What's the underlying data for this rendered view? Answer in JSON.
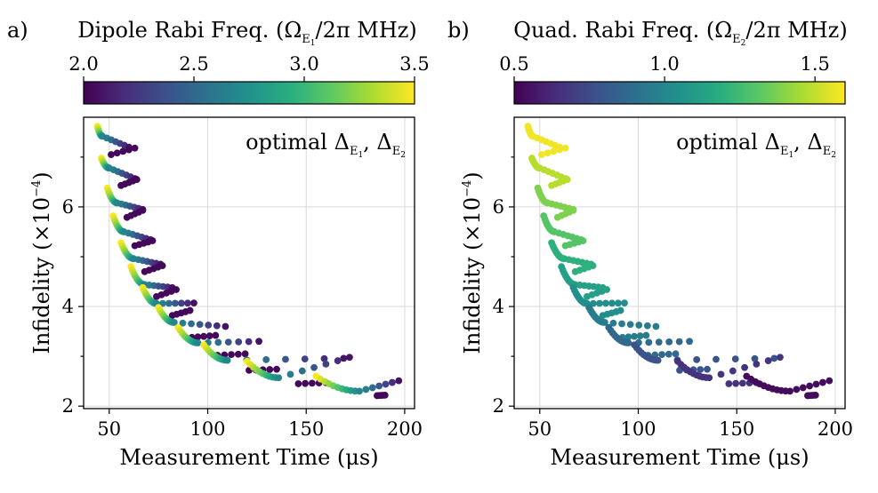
{
  "chart_data": [
    {
      "panel_label": "a)",
      "type": "scatter",
      "xlabel": "Measurement Time (μs)",
      "ylabel_text": "Infidelity",
      "ylabel_unit": "(×10",
      "ylabel_exp": "−4",
      "ylabel_close": ")",
      "x_ticks": [
        "50",
        "100",
        "150",
        "200"
      ],
      "y_ticks": [
        "2",
        "4",
        "6"
      ],
      "xlim": [
        37,
        205
      ],
      "ylim": [
        1.95,
        7.8
      ],
      "annotation": {
        "main": "optimal Δ",
        "sub1": "E",
        "sub1b": "1",
        "sep": ", Δ",
        "sub2": "E",
        "sub2b": "2"
      },
      "colorbar": {
        "title_main": "Dipole Rabi Freq. (Ω",
        "title_sub": "E",
        "title_subsub": "1",
        "title_end": "/2π MHz)",
        "ticks": [
          "2.0",
          "2.5",
          "3.0",
          "3.5"
        ],
        "range": [
          2.0,
          3.5
        ],
        "colormap": "viridis"
      },
      "series": [
        {
          "min": [
            46.5,
            7.42
          ],
          "back": [
            [
              44,
              7.62
            ],
            [
              60,
              7.2
            ]
          ],
          "fwd": [
            [
              51,
              7.05
            ],
            [
              63,
              7.18
            ]
          ]
        },
        {
          "min": [
            50,
            6.78
          ],
          "back": [
            [
              46,
              6.98
            ],
            [
              63,
              6.57
            ]
          ],
          "fwd": [
            [
              56,
              6.43
            ],
            [
              64,
              6.55
            ]
          ]
        },
        {
          "min": [
            54,
            6.08
          ],
          "back": [
            [
              49,
              6.38
            ],
            [
              67,
              5.95
            ]
          ],
          "fwd": [
            [
              59,
              5.79
            ],
            [
              67,
              5.93
            ]
          ]
        },
        {
          "min": [
            57.5,
            5.5
          ],
          "back": [
            [
              52,
              5.82
            ],
            [
              71,
              5.34
            ]
          ],
          "fwd": [
            [
              63,
              5.22
            ],
            [
              72,
              5.32
            ]
          ]
        },
        {
          "min": [
            62.5,
            4.96
          ],
          "back": [
            [
              56,
              5.28
            ],
            [
              76,
              4.85
            ]
          ],
          "fwd": [
            [
              68,
              4.7
            ],
            [
              77,
              4.82
            ]
          ]
        },
        {
          "min": [
            68,
            4.44
          ],
          "back": [
            [
              61,
              4.8
            ],
            [
              82,
              4.38
            ]
          ],
          "fwd": [
            [
              74,
              4.2
            ],
            [
              84,
              4.34
            ]
          ]
        },
        {
          "min": [
            74,
            4.06
          ],
          "back": [
            [
              67,
              4.38
            ],
            [
              93,
              4.07
            ]
          ],
          "fwd": [
            [
              82,
              3.82
            ],
            [
              91,
              3.92
            ]
          ]
        },
        {
          "min": [
            83,
            3.68
          ],
          "back": [
            [
              75,
              3.98
            ],
            [
              109,
              3.6
            ]
          ],
          "fwd": [
            [
              92,
              3.38
            ],
            [
              104,
              3.42
            ]
          ]
        },
        {
          "min": [
            95,
            3.27
          ],
          "back": [
            [
              85,
              3.58
            ],
            [
              126,
              3.3
            ]
          ],
          "fwd": [
            [
              105,
              3.02
            ],
            [
              119,
              3.05
            ]
          ]
        },
        {
          "min": [
            110,
            2.92
          ],
          "back": [
            [
              98,
              3.23
            ],
            [
              169,
              2.96
            ]
          ],
          "fwd": [
            [
              121,
              2.72
            ],
            [
              135,
              2.74
            ]
          ]
        },
        {
          "min": [
            136,
            2.57
          ],
          "back": [
            [
              120,
              2.9
            ],
            [
              172,
              2.98
            ]
          ],
          "fwd": [
            [
              146,
              2.45
            ],
            [
              160,
              2.47
            ]
          ]
        },
        {
          "min": [
            177,
            2.3
          ],
          "back": [
            [
              155,
              2.6
            ],
            [
              197,
              2.51
            ]
          ],
          "fwd": [
            [
              186,
              2.21
            ],
            [
              190,
              2.22
            ]
          ]
        }
      ]
    },
    {
      "panel_label": "b)",
      "type": "scatter",
      "xlabel": "Measurement Time (μs)",
      "ylabel_text": "Infidelity",
      "ylabel_unit": "(×10",
      "ylabel_exp": "−4",
      "ylabel_close": ")",
      "x_ticks": [
        "50",
        "100",
        "150",
        "200"
      ],
      "y_ticks": [
        "2",
        "4",
        "6"
      ],
      "xlim": [
        37,
        205
      ],
      "ylim": [
        1.95,
        7.8
      ],
      "annotation": {
        "main": "optimal Δ",
        "sub1": "E",
        "sub1b": "1",
        "sep": ", Δ",
        "sub2": "E",
        "sub2b": "2"
      },
      "colorbar": {
        "title_main": "Quad. Rabi Freq. (Ω",
        "title_sub": "E",
        "title_subsub": "2",
        "title_end": "/2π MHz)",
        "ticks": [
          "0.5",
          "1.0",
          "1.5"
        ],
        "range": [
          0.5,
          1.6
        ],
        "colormap": "viridis"
      },
      "series": [
        {
          "quad": 1.58,
          "min": [
            46.5,
            7.42
          ],
          "back": [
            [
              44,
              7.62
            ],
            [
              60,
              7.2
            ]
          ],
          "fwd": [
            [
              51,
              7.05
            ],
            [
              63,
              7.18
            ]
          ]
        },
        {
          "quad": 1.48,
          "min": [
            50,
            6.78
          ],
          "back": [
            [
              46,
              6.98
            ],
            [
              63,
              6.57
            ]
          ],
          "fwd": [
            [
              56,
              6.43
            ],
            [
              64,
              6.55
            ]
          ]
        },
        {
          "quad": 1.38,
          "min": [
            54,
            6.08
          ],
          "back": [
            [
              49,
              6.38
            ],
            [
              67,
              5.95
            ]
          ],
          "fwd": [
            [
              59,
              5.79
            ],
            [
              67,
              5.93
            ]
          ]
        },
        {
          "quad": 1.3,
          "min": [
            57.5,
            5.5
          ],
          "back": [
            [
              52,
              5.82
            ],
            [
              71,
              5.34
            ]
          ],
          "fwd": [
            [
              63,
              5.22
            ],
            [
              72,
              5.32
            ]
          ]
        },
        {
          "quad": 1.2,
          "min": [
            62.5,
            4.96
          ],
          "back": [
            [
              56,
              5.28
            ],
            [
              76,
              4.85
            ]
          ],
          "fwd": [
            [
              68,
              4.7
            ],
            [
              77,
              4.82
            ]
          ]
        },
        {
          "quad": 1.12,
          "min": [
            68,
            4.44
          ],
          "back": [
            [
              61,
              4.8
            ],
            [
              82,
              4.38
            ]
          ],
          "fwd": [
            [
              74,
              4.2
            ],
            [
              84,
              4.34
            ]
          ]
        },
        {
          "quad": 1.04,
          "min": [
            74,
            4.06
          ],
          "back": [
            [
              67,
              4.38
            ],
            [
              93,
              4.07
            ]
          ],
          "fwd": [
            [
              82,
              3.82
            ],
            [
              91,
              3.92
            ]
          ]
        },
        {
          "quad": 0.96,
          "min": [
            83,
            3.68
          ],
          "back": [
            [
              75,
              3.98
            ],
            [
              109,
              3.6
            ]
          ],
          "fwd": [
            [
              92,
              3.38
            ],
            [
              104,
              3.42
            ]
          ]
        },
        {
          "quad": 0.87,
          "min": [
            95,
            3.27
          ],
          "back": [
            [
              85,
              3.58
            ],
            [
              126,
              3.3
            ]
          ],
          "fwd": [
            [
              105,
              3.02
            ],
            [
              119,
              3.05
            ]
          ]
        },
        {
          "quad": 0.78,
          "min": [
            110,
            2.92
          ],
          "back": [
            [
              98,
              3.23
            ],
            [
              169,
              2.96
            ]
          ],
          "fwd": [
            [
              121,
              2.72
            ],
            [
              135,
              2.74
            ]
          ]
        },
        {
          "quad": 0.66,
          "min": [
            136,
            2.57
          ],
          "back": [
            [
              120,
              2.9
            ],
            [
              172,
              2.98
            ]
          ],
          "fwd": [
            [
              146,
              2.45
            ],
            [
              160,
              2.47
            ]
          ]
        },
        {
          "quad": 0.53,
          "min": [
            177,
            2.3
          ],
          "back": [
            [
              155,
              2.6
            ],
            [
              197,
              2.51
            ]
          ],
          "fwd": [
            [
              186,
              2.21
            ],
            [
              190,
              2.22
            ]
          ]
        }
      ]
    }
  ]
}
